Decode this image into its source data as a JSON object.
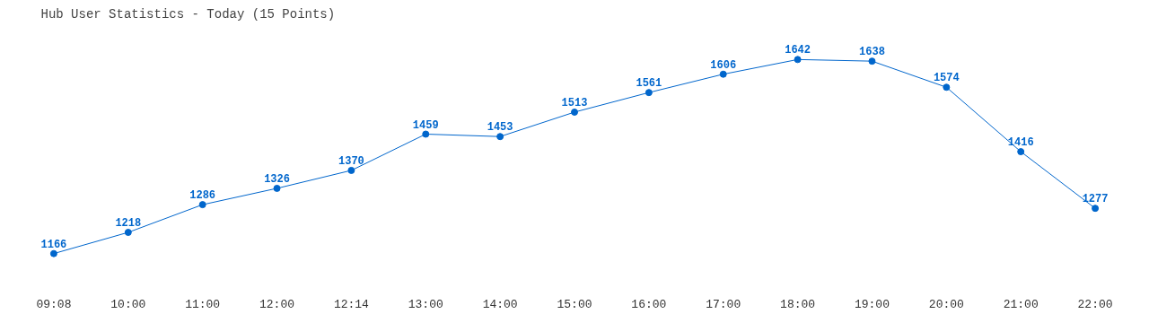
{
  "chart_data": {
    "type": "line",
    "title": "Hub User Statistics - Today (15 Points)",
    "categories": [
      "09:08",
      "10:00",
      "11:00",
      "12:00",
      "12:14",
      "13:00",
      "14:00",
      "15:00",
      "16:00",
      "17:00",
      "18:00",
      "19:00",
      "20:00",
      "21:00",
      "22:00"
    ],
    "series": [
      {
        "color": "#0066cc",
        "values": [
          1166,
          1218,
          1286,
          1326,
          1370,
          1459,
          1453,
          1513,
          1561,
          1606,
          1642,
          1638,
          1574,
          1416,
          1277
        ]
      }
    ],
    "data_labels": true,
    "marker": "circle",
    "grid": false,
    "tick_labels": "x"
  }
}
